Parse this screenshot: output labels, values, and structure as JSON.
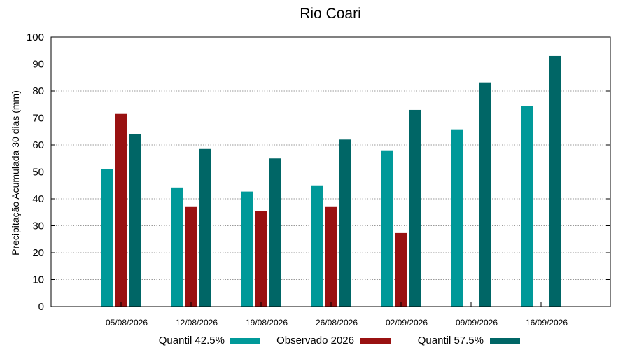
{
  "chart_data": {
    "type": "bar",
    "title": "Rio Coari",
    "xlabel": "",
    "ylabel": "Precipitação Acumulada 30 dias (mm)",
    "ylim": [
      0,
      100
    ],
    "yticks": [
      0,
      10,
      20,
      30,
      40,
      50,
      60,
      70,
      80,
      90,
      100
    ],
    "grid": true,
    "legend_position": "bottom",
    "categories": [
      "05/08/2026",
      "12/08/2026",
      "19/08/2026",
      "26/08/2026",
      "02/09/2026",
      "09/09/2026",
      "16/09/2026"
    ],
    "series": [
      {
        "name": "Quantil 42.5%",
        "color": "#009999",
        "values": [
          51,
          44.2,
          42.7,
          45,
          58,
          65.8,
          74.4
        ]
      },
      {
        "name": "Observado 2026",
        "color": "#991111",
        "values": [
          71.5,
          37.2,
          35.4,
          37.2,
          27.3,
          null,
          null
        ]
      },
      {
        "name": "Quantil 57.5%",
        "color": "#006666",
        "values": [
          64,
          58.5,
          55,
          62,
          73,
          83.2,
          93
        ]
      }
    ]
  }
}
